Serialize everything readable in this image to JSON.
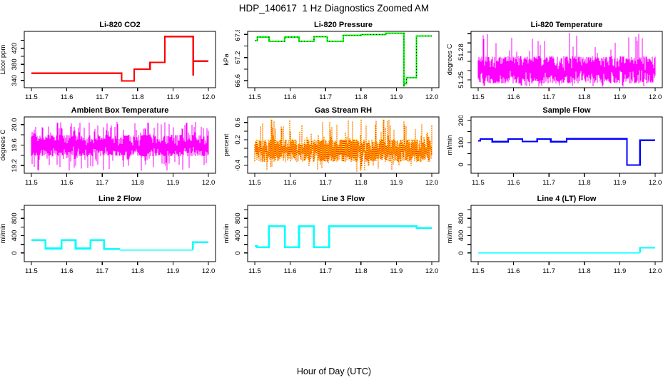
{
  "page": {
    "title": "HDP_140617  1 Hz Diagnostics Zoomed AM",
    "xlabel": "Hour of Day (UTC)",
    "background": "#FFFFFF",
    "axis_color": "#000000"
  },
  "chart_data": [
    {
      "type": "line",
      "title": "Li-820 CO2",
      "ylabel": "Licor ppm",
      "xlim": [
        11.48,
        12.02
      ],
      "ylim": [
        322,
        462
      ],
      "xticks": [
        {
          "v": 11.5,
          "l": "11.5"
        },
        {
          "v": 11.6,
          "l": "11.6"
        },
        {
          "v": 11.7,
          "l": "11.7"
        },
        {
          "v": 11.8,
          "l": "11.8"
        },
        {
          "v": 11.9,
          "l": "11.9"
        },
        {
          "v": 12.0,
          "l": "12.0"
        }
      ],
      "yticks": [
        {
          "v": 340,
          "l": "340"
        },
        {
          "v": 360,
          "l": ""
        },
        {
          "v": 380,
          "l": "380"
        },
        {
          "v": 400,
          "l": ""
        },
        {
          "v": 420,
          "l": "420"
        },
        {
          "v": 440,
          "l": ""
        }
      ],
      "series": [
        {
          "name": "co2-ppm",
          "color": "#FF0000",
          "width": 2.2,
          "segments": [
            [
              11.5,
              11.755,
              358
            ],
            [
              11.755,
              11.79,
              339
            ],
            [
              11.79,
              11.835,
              368
            ],
            [
              11.835,
              11.877,
              385
            ],
            [
              11.877,
              11.957,
              449
            ],
            [
              11.957,
              11.957,
              352
            ],
            [
              11.957,
              12.0,
              388
            ]
          ]
        }
      ]
    },
    {
      "type": "line",
      "title": "Li-820 Pressure",
      "ylabel": "kPa",
      "xlim": [
        11.48,
        12.02
      ],
      "ylim": [
        66.42,
        67.88
      ],
      "xticks": [
        {
          "v": 11.5,
          "l": "11.5"
        },
        {
          "v": 11.6,
          "l": "11.6"
        },
        {
          "v": 11.7,
          "l": "11.7"
        },
        {
          "v": 11.8,
          "l": "11.8"
        },
        {
          "v": 11.9,
          "l": "11.9"
        },
        {
          "v": 12.0,
          "l": "12.0"
        }
      ],
      "yticks": [
        {
          "v": 66.6,
          "l": "66.6"
        },
        {
          "v": 66.9,
          "l": ""
        },
        {
          "v": 67.2,
          "l": "67.2"
        },
        {
          "v": 67.5,
          "l": ""
        },
        {
          "v": 67.8,
          "l": "67.8"
        }
      ],
      "series": [
        {
          "name": "pressure-kpa",
          "color": "#00FF00",
          "width": 2,
          "overlay": {
            "color": "#000000",
            "width": 1,
            "dash": "1,3"
          },
          "segments": [
            [
              11.5,
              11.507,
              67.64
            ],
            [
              11.507,
              11.54,
              67.73
            ],
            [
              11.54,
              11.585,
              67.62
            ],
            [
              11.585,
              11.625,
              67.73
            ],
            [
              11.625,
              11.667,
              67.62
            ],
            [
              11.667,
              11.705,
              67.74
            ],
            [
              11.705,
              11.75,
              67.62
            ],
            [
              11.75,
              11.8,
              67.78
            ],
            [
              11.8,
              11.87,
              67.8
            ],
            [
              11.87,
              11.921,
              67.83
            ],
            [
              11.921,
              11.921,
              66.45
            ],
            [
              11.921,
              11.928,
              66.52
            ],
            [
              11.928,
              11.957,
              66.68
            ],
            [
              11.957,
              12.0,
              67.76
            ]
          ]
        }
      ]
    },
    {
      "type": "noise-band",
      "title": "Li-820 Temperature",
      "ylabel": "degrees C",
      "xlim": [
        11.48,
        12.02
      ],
      "ylim": [
        51.2415,
        51.3025
      ],
      "xticks": [
        {
          "v": 11.5,
          "l": "11.5"
        },
        {
          "v": 11.6,
          "l": "11.6"
        },
        {
          "v": 11.7,
          "l": "11.7"
        },
        {
          "v": 11.8,
          "l": "11.8"
        },
        {
          "v": 11.9,
          "l": "11.9"
        },
        {
          "v": 12.0,
          "l": "12.0"
        }
      ],
      "yticks": [
        {
          "v": 51.25,
          "l": "51.25"
        },
        {
          "v": 51.26,
          "l": ""
        },
        {
          "v": 51.27,
          "l": ""
        },
        {
          "v": 51.28,
          "l": "51.28"
        },
        {
          "v": 51.29,
          "l": ""
        },
        {
          "v": 51.3,
          "l": ""
        }
      ],
      "noise": {
        "name": "li820-temp",
        "color": "#FF00FF",
        "width": 1.4,
        "seed": 11,
        "x_range": [
          11.5,
          12.0
        ],
        "band": [
          51.246,
          51.2755
        ],
        "spike_up": [
          51.279,
          51.302
        ],
        "spike_up_prob": 0.09,
        "spike_down": [
          51.2425,
          51.2445
        ],
        "spike_down_prob": 0.06
      }
    },
    {
      "type": "noise-band",
      "title": "Ambient Box Temperature",
      "ylabel": "degrees C",
      "xlim": [
        11.48,
        12.02
      ],
      "ylim": [
        19.05,
        20.15
      ],
      "xticks": [
        {
          "v": 11.5,
          "l": "11.5"
        },
        {
          "v": 11.6,
          "l": "11.6"
        },
        {
          "v": 11.7,
          "l": "11.7"
        },
        {
          "v": 11.8,
          "l": "11.8"
        },
        {
          "v": 11.9,
          "l": "11.9"
        },
        {
          "v": 12.0,
          "l": "12.0"
        }
      ],
      "yticks": [
        {
          "v": 19.2,
          "l": "19.2"
        },
        {
          "v": 19.4,
          "l": ""
        },
        {
          "v": 19.6,
          "l": "19.6"
        },
        {
          "v": 19.8,
          "l": ""
        },
        {
          "v": 20.0,
          "l": "20.0"
        }
      ],
      "noise": {
        "name": "ambient-temp",
        "color": "#FF00FF",
        "width": 1.4,
        "seed": 22,
        "x_range": [
          11.5,
          12.0
        ],
        "band": [
          19.38,
          19.8
        ],
        "spike_up": [
          19.82,
          20.08
        ],
        "spike_up_prob": 0.25,
        "spike_down": [
          19.1,
          19.36
        ],
        "spike_down_prob": 0.22
      }
    },
    {
      "type": "noise-band",
      "title": "Gas Stream RH",
      "ylabel": "percent",
      "xlim": [
        11.48,
        12.02
      ],
      "ylim": [
        -0.58,
        0.73
      ],
      "xticks": [
        {
          "v": 11.5,
          "l": "11.5"
        },
        {
          "v": 11.6,
          "l": "11.6"
        },
        {
          "v": 11.7,
          "l": "11.7"
        },
        {
          "v": 11.8,
          "l": "11.8"
        },
        {
          "v": 11.9,
          "l": "11.9"
        },
        {
          "v": 12.0,
          "l": "12.0"
        }
      ],
      "yticks": [
        {
          "v": -0.4,
          "l": "-0.4"
        },
        {
          "v": -0.2,
          "l": ""
        },
        {
          "v": 0.0,
          "l": ""
        },
        {
          "v": 0.2,
          "l": "0.2"
        },
        {
          "v": 0.4,
          "l": ""
        },
        {
          "v": 0.6,
          "l": "0.6"
        }
      ],
      "noise": {
        "name": "gas-stream-rh",
        "color": "#FF4500",
        "width": 1.4,
        "seed": 33,
        "overlay": {
          "color": "#FFFF00",
          "width": 1.4,
          "dash": "1,2"
        },
        "x_range": [
          11.5,
          12.0
        ],
        "band": [
          -0.32,
          0.22
        ],
        "spike_up": [
          0.24,
          0.68
        ],
        "spike_up_prob": 0.22,
        "spike_down": [
          -0.55,
          -0.34
        ],
        "spike_down_prob": 0.1
      }
    },
    {
      "type": "line",
      "title": "Sample Flow",
      "ylabel": "ml/min",
      "xlim": [
        11.48,
        12.02
      ],
      "ylim": [
        -39,
        216
      ],
      "xticks": [
        {
          "v": 11.5,
          "l": "11.5"
        },
        {
          "v": 11.6,
          "l": "11.6"
        },
        {
          "v": 11.7,
          "l": "11.7"
        },
        {
          "v": 11.8,
          "l": "11.8"
        },
        {
          "v": 11.9,
          "l": "11.9"
        },
        {
          "v": 12.0,
          "l": "12.0"
        }
      ],
      "yticks": [
        {
          "v": 0,
          "l": "0"
        },
        {
          "v": 50,
          "l": ""
        },
        {
          "v": 100,
          "l": "100"
        },
        {
          "v": 150,
          "l": ""
        },
        {
          "v": 200,
          "l": "200"
        }
      ],
      "series": [
        {
          "name": "sample-flow",
          "color": "#0000FF",
          "width": 2.2,
          "segments": [
            [
              11.5,
              11.506,
              108
            ],
            [
              11.506,
              11.54,
              116
            ],
            [
              11.54,
              11.585,
              104
            ],
            [
              11.585,
              11.625,
              116
            ],
            [
              11.625,
              11.667,
              105
            ],
            [
              11.667,
              11.705,
              116
            ],
            [
              11.705,
              11.75,
              104
            ],
            [
              11.75,
              11.92,
              117
            ],
            [
              11.92,
              11.957,
              -2
            ],
            [
              11.957,
              12.0,
              110
            ]
          ]
        }
      ]
    },
    {
      "type": "line",
      "title": "Line 2 Flow",
      "ylabel": "ml/min",
      "xlim": [
        11.48,
        12.02
      ],
      "ylim": [
        -200,
        1100
      ],
      "xticks": [
        {
          "v": 11.5,
          "l": "11.5"
        },
        {
          "v": 11.6,
          "l": "11.6"
        },
        {
          "v": 11.7,
          "l": "11.7"
        },
        {
          "v": 11.8,
          "l": "11.8"
        },
        {
          "v": 11.9,
          "l": "11.9"
        },
        {
          "v": 12.0,
          "l": "12.0"
        }
      ],
      "yticks": [
        {
          "v": 0,
          "l": "0"
        },
        {
          "v": 200,
          "l": ""
        },
        {
          "v": 400,
          "l": "400"
        },
        {
          "v": 600,
          "l": ""
        },
        {
          "v": 800,
          "l": "800"
        },
        {
          "v": 1000,
          "l": ""
        }
      ],
      "series": [
        {
          "name": "line2-flow-high",
          "color": "#00FFFF",
          "width": 2.6,
          "segments": [
            [
              11.5,
              11.54,
              295
            ],
            [
              11.54,
              11.585,
              105
            ],
            [
              11.585,
              11.625,
              295
            ],
            [
              11.625,
              11.667,
              105
            ],
            [
              11.667,
              11.705,
              295
            ],
            [
              11.705,
              11.75,
              95
            ]
          ]
        },
        {
          "name": "line2-flow-low",
          "color": "#00FFFF",
          "width": 1.3,
          "segments": [
            [
              11.75,
              11.956,
              70
            ]
          ]
        },
        {
          "name": "line2-flow-end",
          "color": "#00FFFF",
          "width": 2.6,
          "segments": [
            [
              11.956,
              11.956,
              70
            ],
            [
              11.956,
              12.0,
              248
            ]
          ]
        }
      ]
    },
    {
      "type": "line",
      "title": "Line 3 Flow",
      "ylabel": "ml/min",
      "xlim": [
        11.48,
        12.02
      ],
      "ylim": [
        -200,
        1100
      ],
      "xticks": [
        {
          "v": 11.5,
          "l": "11.5"
        },
        {
          "v": 11.6,
          "l": "11.6"
        },
        {
          "v": 11.7,
          "l": "11.7"
        },
        {
          "v": 11.8,
          "l": "11.8"
        },
        {
          "v": 11.9,
          "l": "11.9"
        },
        {
          "v": 12.0,
          "l": "12.0"
        }
      ],
      "yticks": [
        {
          "v": 0,
          "l": "0"
        },
        {
          "v": 200,
          "l": ""
        },
        {
          "v": 400,
          "l": "400"
        },
        {
          "v": 600,
          "l": ""
        },
        {
          "v": 800,
          "l": "800"
        },
        {
          "v": 1000,
          "l": ""
        }
      ],
      "series": [
        {
          "name": "line3-flow",
          "color": "#00FFFF",
          "width": 2.6,
          "segments": [
            [
              11.5,
              11.507,
              160
            ],
            [
              11.507,
              11.54,
              130
            ],
            [
              11.54,
              11.585,
              620
            ],
            [
              11.585,
              11.625,
              130
            ],
            [
              11.625,
              11.667,
              620
            ],
            [
              11.667,
              11.71,
              130
            ],
            [
              11.71,
              11.957,
              620
            ],
            [
              11.957,
              12.0,
              578
            ]
          ]
        }
      ]
    },
    {
      "type": "line",
      "title": "Line 4 (LT) Flow",
      "ylabel": "ml/min",
      "xlim": [
        11.48,
        12.02
      ],
      "ylim": [
        -200,
        1100
      ],
      "xticks": [
        {
          "v": 11.5,
          "l": "11.5"
        },
        {
          "v": 11.6,
          "l": "11.6"
        },
        {
          "v": 11.7,
          "l": "11.7"
        },
        {
          "v": 11.8,
          "l": "11.8"
        },
        {
          "v": 11.9,
          "l": "11.9"
        },
        {
          "v": 12.0,
          "l": "12.0"
        }
      ],
      "yticks": [
        {
          "v": 0,
          "l": "0"
        },
        {
          "v": 200,
          "l": ""
        },
        {
          "v": 400,
          "l": "400"
        },
        {
          "v": 600,
          "l": ""
        },
        {
          "v": 800,
          "l": "800"
        },
        {
          "v": 1000,
          "l": ""
        }
      ],
      "series": [
        {
          "name": "line4-flow-zero",
          "color": "#00FFFF",
          "width": 1.4,
          "segments": [
            [
              11.5,
              11.957,
              2
            ]
          ]
        },
        {
          "name": "line4-flow-end",
          "color": "#00FFFF",
          "width": 2.2,
          "segments": [
            [
              11.957,
              11.957,
              2
            ],
            [
              11.957,
              12.0,
              120
            ]
          ]
        }
      ]
    }
  ]
}
